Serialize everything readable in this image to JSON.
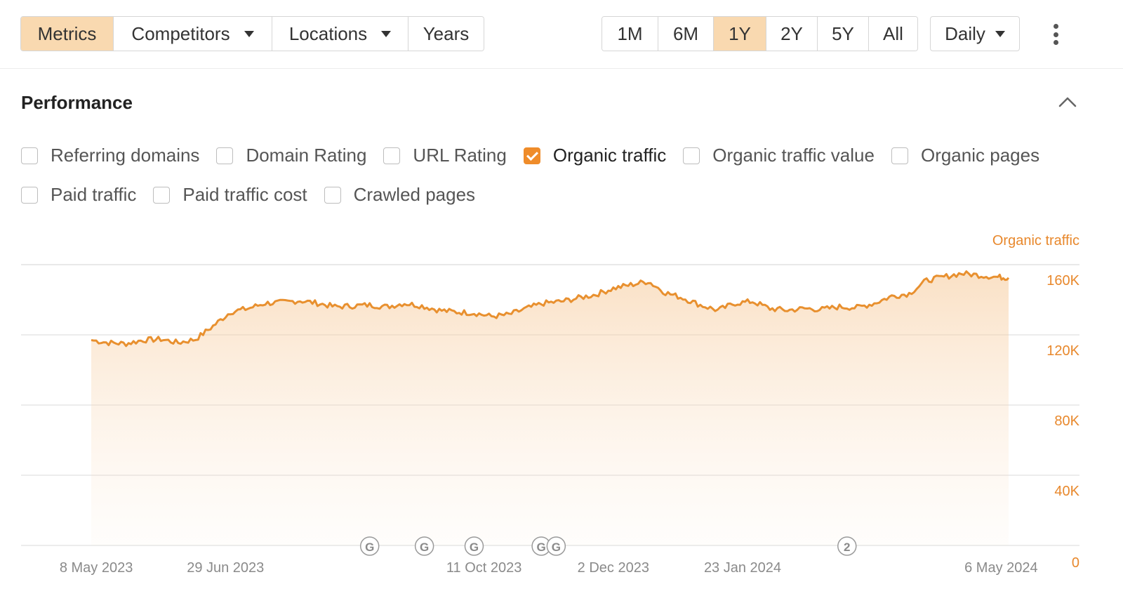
{
  "toolbar": {
    "tabs": [
      "Metrics",
      "Competitors",
      "Locations",
      "Years"
    ],
    "ranges": [
      "1M",
      "6M",
      "1Y",
      "2Y",
      "5Y",
      "All"
    ],
    "interval": "Daily"
  },
  "section": {
    "title": "Performance"
  },
  "checkboxes": {
    "referring_domains": "Referring domains",
    "domain_rating": "Domain Rating",
    "url_rating": "URL Rating",
    "organic_traffic": "Organic traffic",
    "organic_traffic_value": "Organic traffic value",
    "organic_pages": "Organic pages",
    "paid_traffic": "Paid traffic",
    "paid_traffic_cost": "Paid traffic cost",
    "crawled_pages": "Crawled pages"
  },
  "colors": {
    "accent": "#ef8c2a",
    "line": "#e8902f",
    "active_bg": "#f9d9b0"
  },
  "chart_data": {
    "type": "area",
    "series": [
      {
        "name": "Organic traffic",
        "points": [
          [
            "2023-05-06",
            117000
          ],
          [
            "2023-05-13",
            115500
          ],
          [
            "2023-05-20",
            115000
          ],
          [
            "2023-05-27",
            117000
          ],
          [
            "2023-06-03",
            117500
          ],
          [
            "2023-06-10",
            115500
          ],
          [
            "2023-06-17",
            117500
          ],
          [
            "2023-06-24",
            125000
          ],
          [
            "2023-07-01",
            133000
          ],
          [
            "2023-07-08",
            135000
          ],
          [
            "2023-07-15",
            138000
          ],
          [
            "2023-07-22",
            138500
          ],
          [
            "2023-07-29",
            139500
          ],
          [
            "2023-08-05",
            138000
          ],
          [
            "2023-08-12",
            136000
          ],
          [
            "2023-08-19",
            136500
          ],
          [
            "2023-08-26",
            137000
          ],
          [
            "2023-09-02",
            136000
          ],
          [
            "2023-09-09",
            138000
          ],
          [
            "2023-09-16",
            136500
          ],
          [
            "2023-09-23",
            134000
          ],
          [
            "2023-09-30",
            133000
          ],
          [
            "2023-10-07",
            132500
          ],
          [
            "2023-10-14",
            130500
          ],
          [
            "2023-10-21",
            131500
          ],
          [
            "2023-10-28",
            135000
          ],
          [
            "2023-11-04",
            138000
          ],
          [
            "2023-11-11",
            139000
          ],
          [
            "2023-11-18",
            141000
          ],
          [
            "2023-11-25",
            143000
          ],
          [
            "2023-12-02",
            146500
          ],
          [
            "2023-12-09",
            148500
          ],
          [
            "2023-12-16",
            150500
          ],
          [
            "2023-12-23",
            144000
          ],
          [
            "2023-12-30",
            141000
          ],
          [
            "2024-01-06",
            137000
          ],
          [
            "2024-01-13",
            134000
          ],
          [
            "2024-01-20",
            138000
          ],
          [
            "2024-01-27",
            139000
          ],
          [
            "2024-02-03",
            135000
          ],
          [
            "2024-02-10",
            134000
          ],
          [
            "2024-02-17",
            135000
          ],
          [
            "2024-02-24",
            134500
          ],
          [
            "2024-03-02",
            136000
          ],
          [
            "2024-03-09",
            135500
          ],
          [
            "2024-03-16",
            138000
          ],
          [
            "2024-03-23",
            142000
          ],
          [
            "2024-03-30",
            143500
          ],
          [
            "2024-04-06",
            151000
          ],
          [
            "2024-04-13",
            153000
          ],
          [
            "2024-04-20",
            155000
          ],
          [
            "2024-04-27",
            154000
          ],
          [
            "2024-05-04",
            153000
          ],
          [
            "2024-05-09",
            152500
          ]
        ]
      }
    ],
    "series_label": "Organic traffic",
    "y_ticks": [
      {
        "value": 160000,
        "label": "160K"
      },
      {
        "value": 120000,
        "label": "120K"
      },
      {
        "value": 80000,
        "label": "80K"
      },
      {
        "value": 40000,
        "label": "40K"
      },
      {
        "value": 0,
        "label": "0"
      }
    ],
    "x_ticks": [
      {
        "date": "2023-05-08",
        "label": "8 May 2023"
      },
      {
        "date": "2023-06-29",
        "label": "29 Jun 2023"
      },
      {
        "date": "2023-10-11",
        "label": "11 Oct 2023"
      },
      {
        "date": "2023-12-02",
        "label": "2 Dec 2023"
      },
      {
        "date": "2024-01-23",
        "label": "23 Jan 2024"
      },
      {
        "date": "2024-05-06",
        "label": "6 May 2024"
      }
    ],
    "annotations": [
      {
        "date": "2023-08-26",
        "label": "G"
      },
      {
        "date": "2023-09-17",
        "label": "G"
      },
      {
        "date": "2023-10-07",
        "label": "G"
      },
      {
        "date": "2023-11-03",
        "label": "G"
      },
      {
        "date": "2023-11-09",
        "label": "G"
      },
      {
        "date": "2024-03-05",
        "label": "2"
      }
    ],
    "ylim": [
      0,
      160000
    ],
    "grid": true
  }
}
